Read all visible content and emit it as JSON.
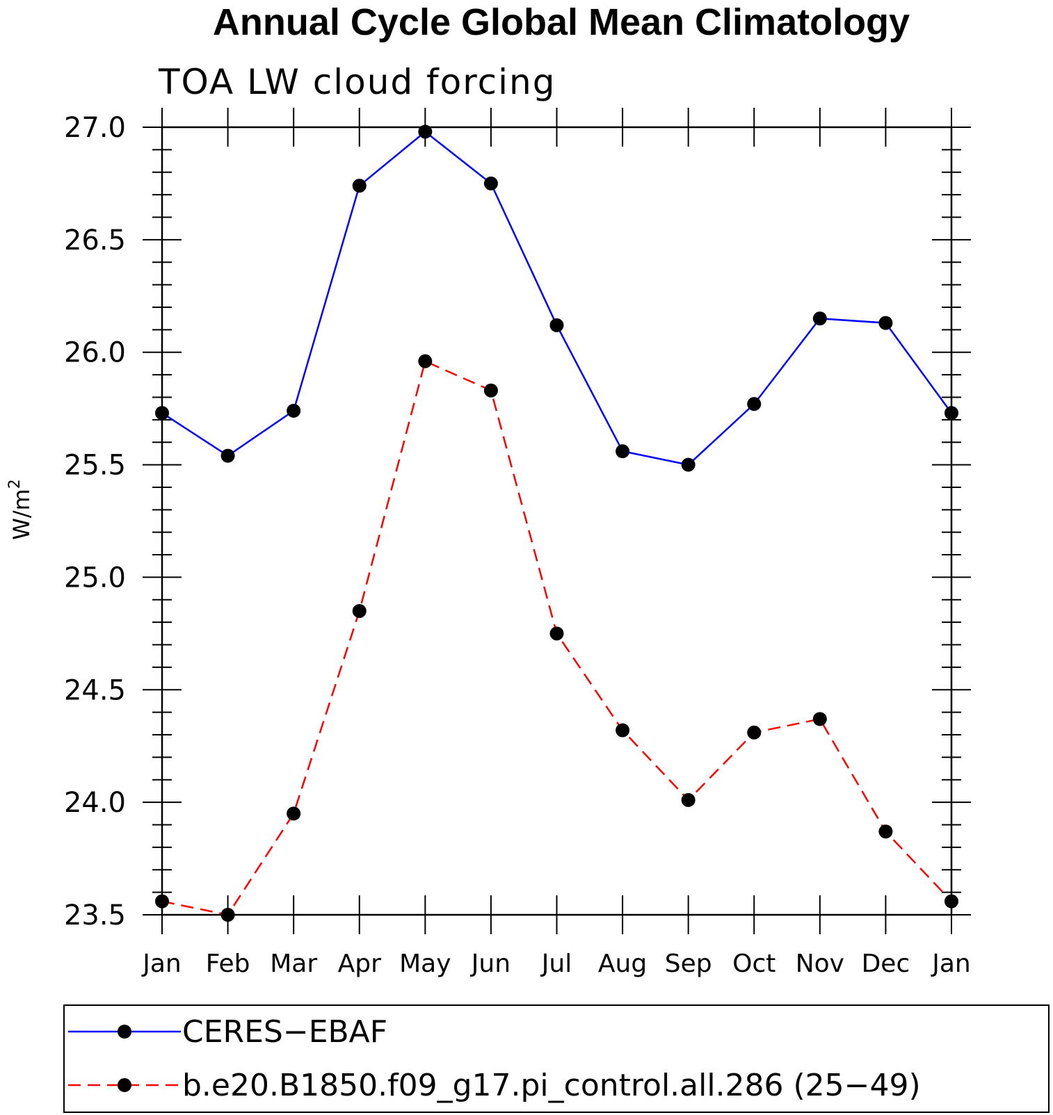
{
  "chart_data": {
    "type": "line",
    "title": "Annual Cycle Global Mean Climatology",
    "subtitle": "TOA LW cloud forcing",
    "ylabel": "W/m",
    "ylabel_sup": "2",
    "ylim": [
      23.5,
      27.0
    ],
    "yticks": [
      "27.0",
      "26.5",
      "26.0",
      "25.5",
      "25.0",
      "24.5",
      "24.0",
      "23.5"
    ],
    "ytick_values": [
      27.0,
      26.5,
      26.0,
      25.5,
      25.0,
      24.5,
      24.0,
      23.5
    ],
    "categories": [
      "Jan",
      "Feb",
      "Mar",
      "Apr",
      "May",
      "Jun",
      "Jul",
      "Aug",
      "Sep",
      "Oct",
      "Nov",
      "Dec",
      "Jan"
    ],
    "series": [
      {
        "name": "CERES−EBAF",
        "color": "#0000ff",
        "dash": "solid",
        "values": [
          25.73,
          25.54,
          25.74,
          26.74,
          26.98,
          26.75,
          26.12,
          25.56,
          25.5,
          25.77,
          26.15,
          26.13,
          25.73
        ]
      },
      {
        "name": "b.e20.B1850.f09_g17.pi_control.all.286 (25−49)",
        "color": "#ff0000",
        "dash": "dashed",
        "values": [
          23.56,
          23.5,
          23.95,
          24.85,
          25.96,
          25.83,
          24.75,
          24.32,
          24.01,
          24.31,
          24.37,
          23.87,
          23.56
        ]
      }
    ],
    "legend_position": "bottom",
    "marker_color": "#000000"
  }
}
